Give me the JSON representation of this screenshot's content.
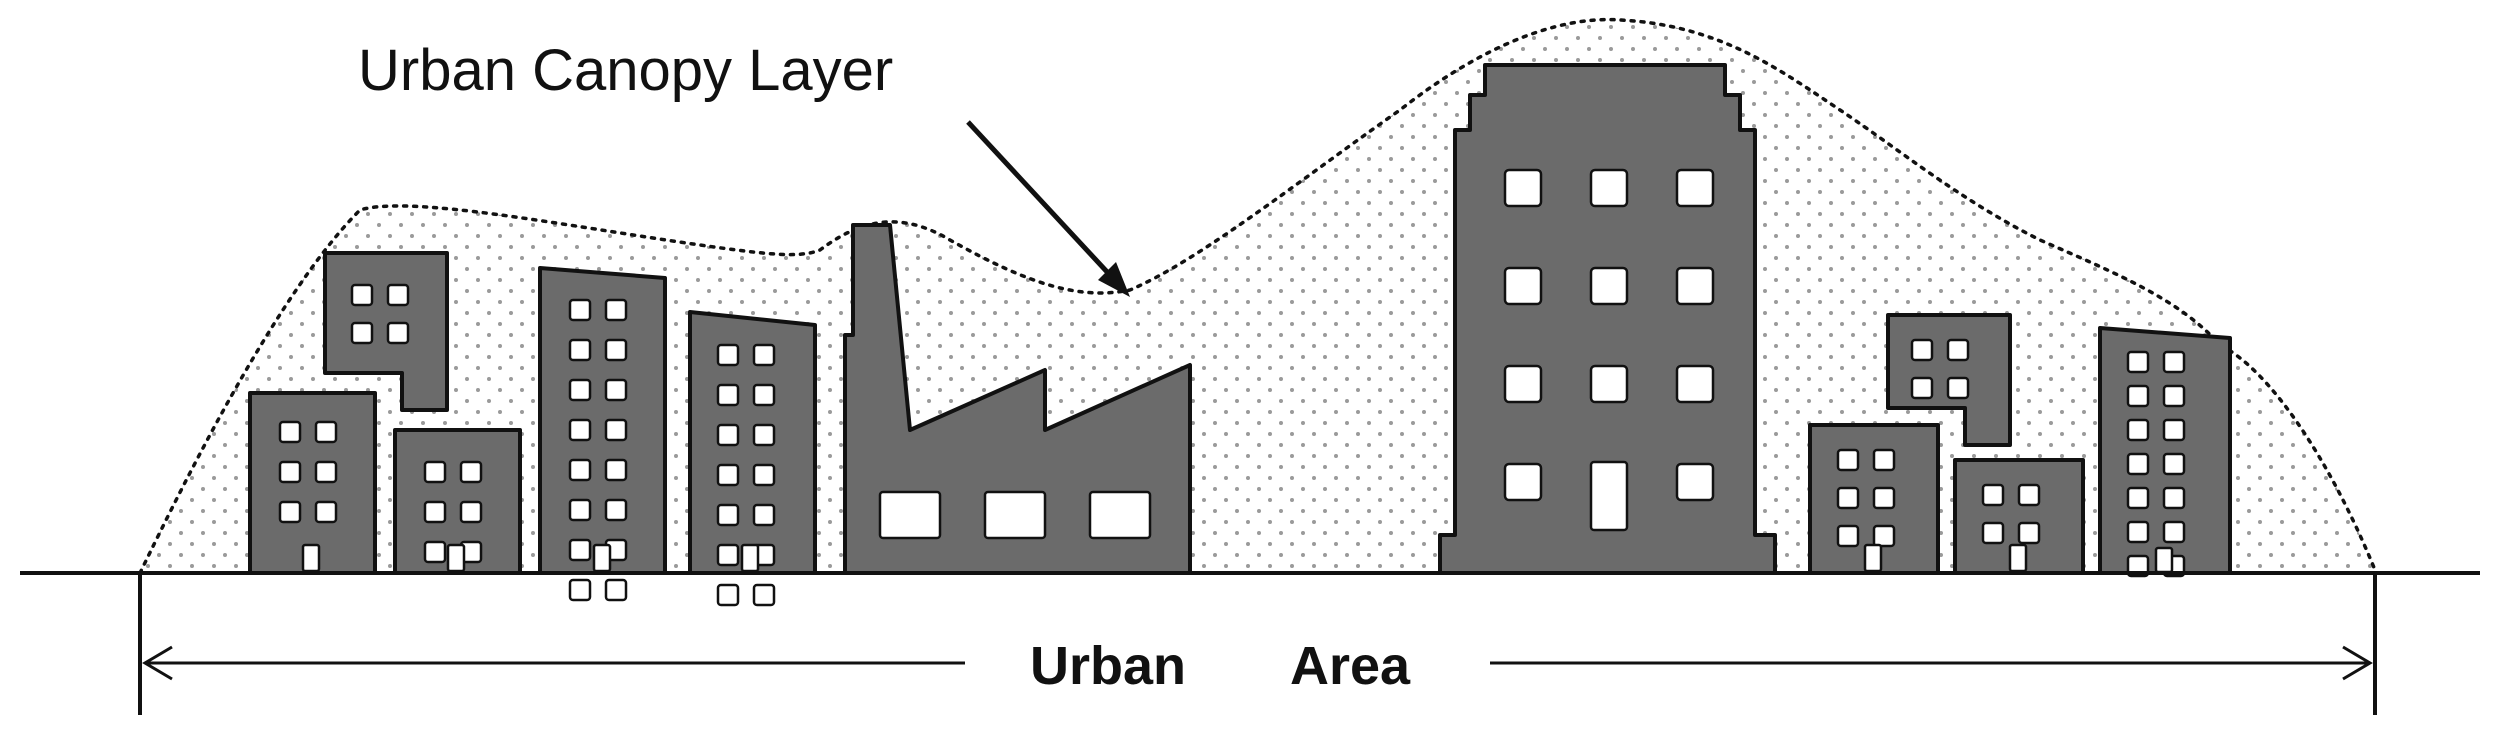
{
  "labels": {
    "canopy": "Urban Canopy Layer",
    "area_word1": "Urban",
    "area_word2": "Area"
  },
  "colors": {
    "building": "#6b6b6b",
    "window": "#ffffff",
    "stroke": "#111111",
    "canopy_dots": "#9a9a9a"
  }
}
